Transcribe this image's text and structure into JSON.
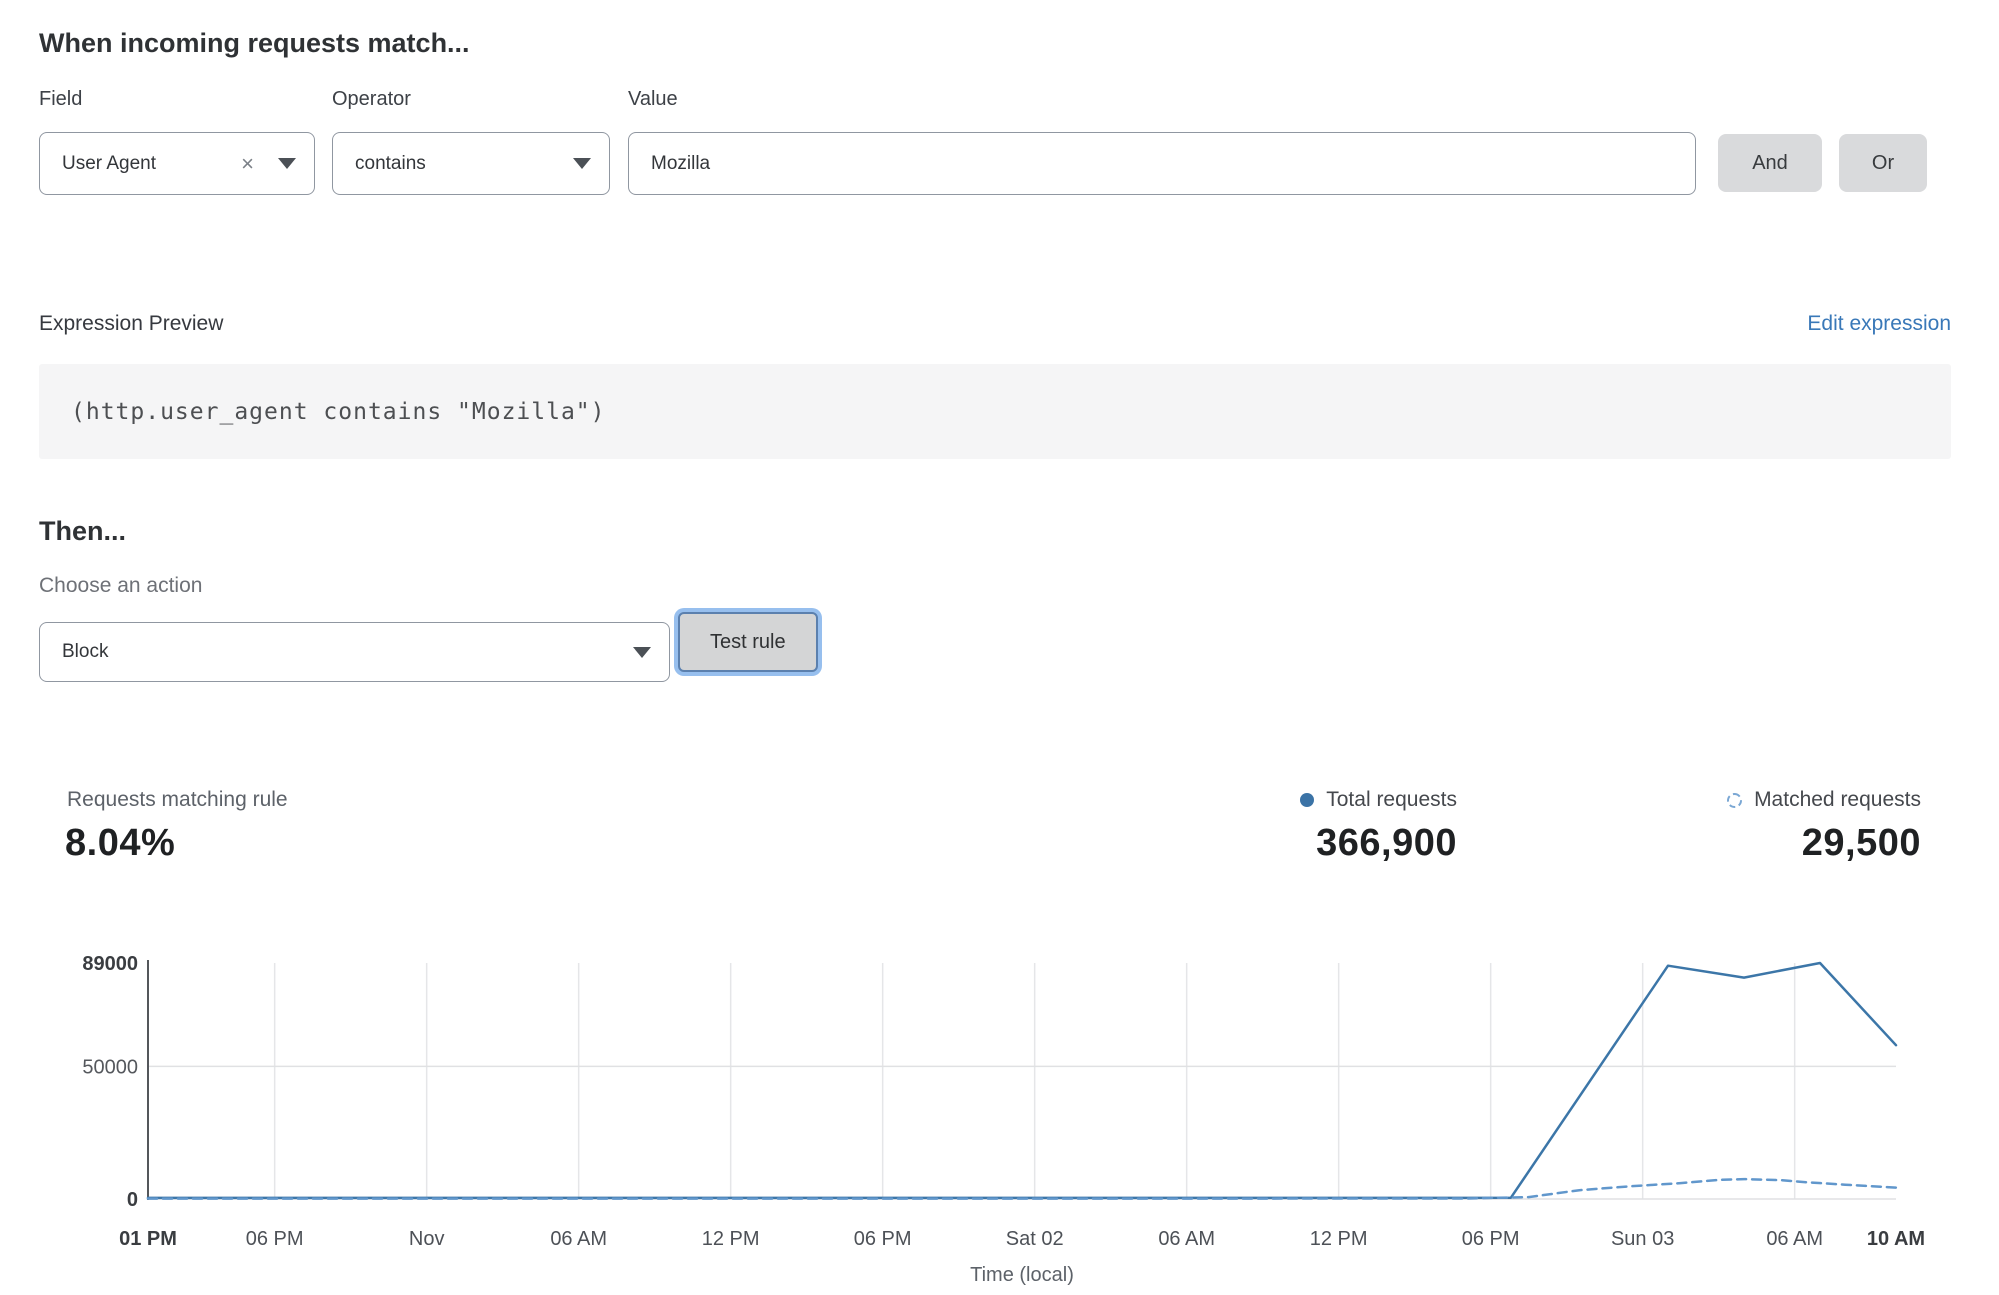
{
  "header": {
    "title": "When incoming requests match..."
  },
  "condition": {
    "field_label": "Field",
    "field_value": "User Agent",
    "field_clear_icon": "x-clear",
    "operator_label": "Operator",
    "operator_value": "contains",
    "value_label": "Value",
    "value_text": "Mozilla",
    "and_label": "And",
    "or_label": "Or"
  },
  "expression": {
    "label": "Expression Preview",
    "edit_link": "Edit expression",
    "code": "(http.user_agent contains \"Mozilla\")"
  },
  "then_section": {
    "title": "Then...",
    "action_label": "Choose an action",
    "action_value": "Block",
    "test_button": "Test rule"
  },
  "stats": {
    "matching_label": "Requests matching rule",
    "matching_value": "8.04%",
    "total_label": "Total requests",
    "total_value": "366,900",
    "matched_label": "Matched requests",
    "matched_value": "29,500"
  },
  "colors": {
    "link_blue": "#3978b8",
    "solid_line": "#3c76a8",
    "dashed_line": "#6197cc",
    "legend_dot": "#3b73a6",
    "focus_ring": "#97bfee",
    "button_gray": "#d9dadc"
  },
  "chart_data": {
    "type": "line",
    "title": "",
    "xlabel": "Time (local)",
    "ylabel": "",
    "xlim_hours": [
      0,
      69
    ],
    "ylim": [
      0,
      89000
    ],
    "grid": true,
    "legend_position": "top-right",
    "x_ticks": [
      {
        "t": 0,
        "label": "01 PM",
        "bold": true,
        "grid": false
      },
      {
        "t": 5,
        "label": "06 PM",
        "bold": false,
        "grid": true
      },
      {
        "t": 11,
        "label": "Nov",
        "bold": false,
        "grid": true
      },
      {
        "t": 17,
        "label": "06 AM",
        "bold": false,
        "grid": true
      },
      {
        "t": 23,
        "label": "12 PM",
        "bold": false,
        "grid": true
      },
      {
        "t": 29,
        "label": "06 PM",
        "bold": false,
        "grid": true
      },
      {
        "t": 35,
        "label": "Sat 02",
        "bold": false,
        "grid": true
      },
      {
        "t": 41,
        "label": "06 AM",
        "bold": false,
        "grid": true
      },
      {
        "t": 47,
        "label": "12 PM",
        "bold": false,
        "grid": true
      },
      {
        "t": 53,
        "label": "06 PM",
        "bold": false,
        "grid": true
      },
      {
        "t": 59,
        "label": "Sun 03",
        "bold": false,
        "grid": true
      },
      {
        "t": 65,
        "label": "06 AM",
        "bold": false,
        "grid": true
      },
      {
        "t": 69,
        "label": "10 AM",
        "bold": true,
        "grid": false
      }
    ],
    "y_ticks": [
      {
        "v": 0,
        "label": "0",
        "bold": true,
        "grid": true
      },
      {
        "v": 50000,
        "label": "50000",
        "bold": false,
        "grid": true
      },
      {
        "v": 89000,
        "label": "89000",
        "bold": true,
        "grid": false
      }
    ],
    "series": [
      {
        "name": "Total requests",
        "style": "solid",
        "color": "#3c76a8",
        "points": [
          [
            0,
            400
          ],
          [
            10,
            400
          ],
          [
            20,
            400
          ],
          [
            30,
            400
          ],
          [
            40,
            400
          ],
          [
            50,
            400
          ],
          [
            53.8,
            500
          ],
          [
            60,
            88000
          ],
          [
            63,
            83500
          ],
          [
            66,
            89000
          ],
          [
            69,
            58000
          ]
        ]
      },
      {
        "name": "Matched requests",
        "style": "dashed",
        "color": "#6197cc",
        "points": [
          [
            0,
            150
          ],
          [
            20,
            150
          ],
          [
            40,
            150
          ],
          [
            52,
            200
          ],
          [
            54.5,
            700
          ],
          [
            56.5,
            3300
          ],
          [
            58.5,
            4800
          ],
          [
            60.5,
            6000
          ],
          [
            62,
            7200
          ],
          [
            63,
            7500
          ],
          [
            64.5,
            7100
          ],
          [
            65.5,
            6300
          ],
          [
            67,
            5400
          ],
          [
            69,
            4300
          ]
        ]
      }
    ]
  }
}
